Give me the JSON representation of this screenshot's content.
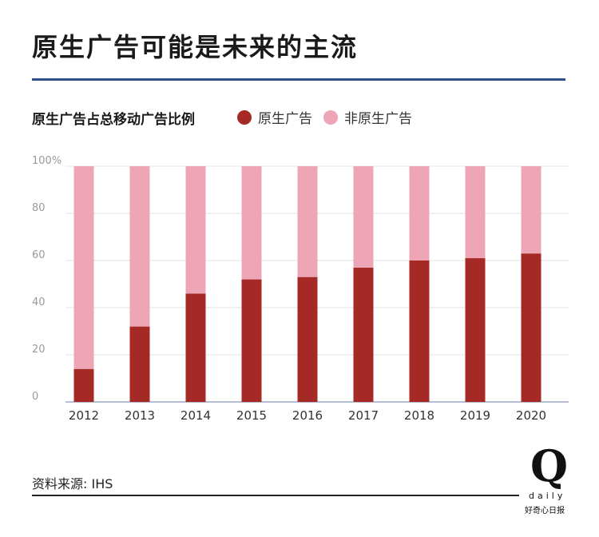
{
  "header": {
    "title": "原生广告可能是未来的主流"
  },
  "colors": {
    "title_rule": "#2f4f8f",
    "native": "#a52a26",
    "non_native": "#eea5b6",
    "grid": "#e3e3e3",
    "axis_text": "#9a9a9a",
    "year_text": "#333333"
  },
  "legend": {
    "native_label": "原生广告",
    "non_native_label": "非原生广告"
  },
  "chart_data": {
    "type": "bar",
    "stacked": true,
    "title": "原生广告占总移动广告比例",
    "xlabel": "",
    "ylabel": "",
    "ylim": [
      0,
      100
    ],
    "yticks": [
      "0",
      "20",
      "40",
      "60",
      "80",
      "100%"
    ],
    "categories": [
      "2012",
      "2013",
      "2014",
      "2015",
      "2016",
      "2017",
      "2018",
      "2019",
      "2020"
    ],
    "series": [
      {
        "name": "原生广告",
        "values": [
          14,
          32,
          46,
          52,
          53,
          57,
          60,
          61,
          63
        ]
      },
      {
        "name": "非原生广告",
        "values": [
          86,
          68,
          54,
          48,
          47,
          43,
          40,
          39,
          37
        ]
      }
    ]
  },
  "footer": {
    "source": "资料来源: IHS"
  },
  "logo": {
    "letter": "Q",
    "word": "daily",
    "tagline": "好奇心日报"
  }
}
